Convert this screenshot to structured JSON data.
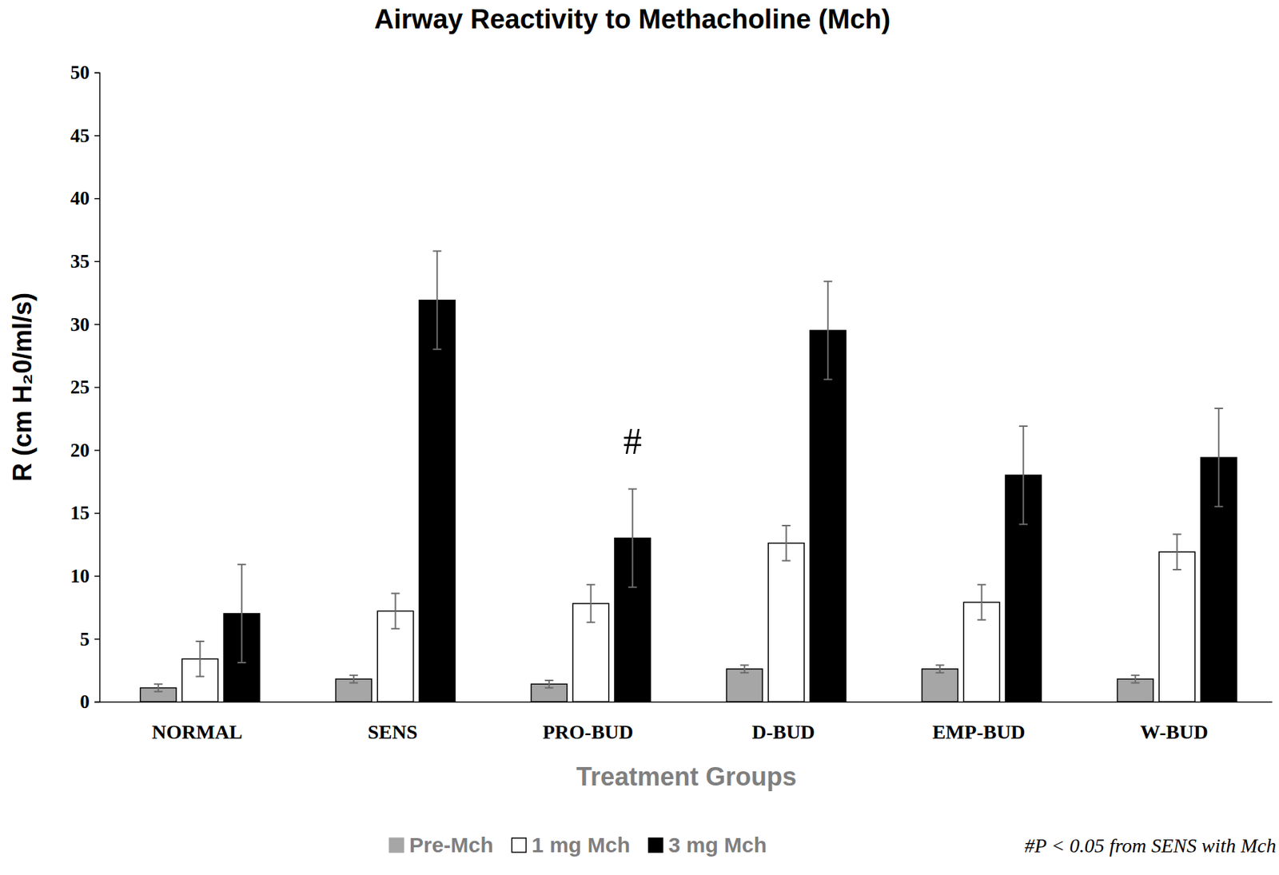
{
  "chart_data": {
    "type": "bar",
    "title": "Airway Reactivity to Methacholine (Mch)",
    "x_label": "Treatment Groups",
    "y_label": "R (cm H₂0/ml/s)",
    "categories": [
      "NORMAL",
      "SENS",
      "PRO-BUD",
      "D-BUD",
      "EMP-BUD",
      "W-BUD"
    ],
    "series": [
      {
        "name": "Pre-Mch",
        "color": "#a6a6a6",
        "values": [
          1.1,
          1.8,
          1.4,
          2.6,
          2.6,
          1.8
        ],
        "errors": [
          0.3,
          0.3,
          0.3,
          0.3,
          0.3,
          0.3
        ]
      },
      {
        "name": "1 mg Mch",
        "color": "#ffffff",
        "values": [
          3.4,
          7.2,
          7.8,
          12.6,
          7.9,
          11.9
        ],
        "errors": [
          1.4,
          1.4,
          1.5,
          1.4,
          1.4,
          1.4
        ]
      },
      {
        "name": "3 mg Mch",
        "color": "#000000",
        "values": [
          7.0,
          31.9,
          13.0,
          29.5,
          18.0,
          19.4
        ],
        "errors": [
          3.9,
          3.9,
          3.9,
          3.9,
          3.9,
          3.9
        ]
      }
    ],
    "annotations": [
      {
        "text": "#",
        "category": "PRO-BUD",
        "series": "3 mg Mch"
      }
    ],
    "footnote": "#P < 0.05 from SENS with Mch",
    "ylim": [
      0,
      50
    ],
    "yticks": [
      0,
      5,
      10,
      15,
      20,
      25,
      30,
      35,
      40,
      45,
      50
    ],
    "grid": false,
    "legend": "bottom"
  }
}
